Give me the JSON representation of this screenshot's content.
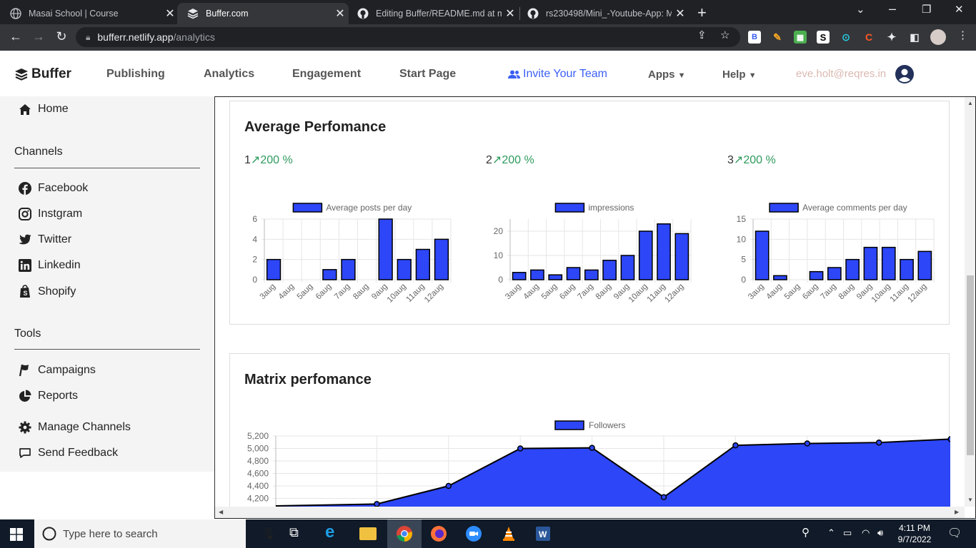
{
  "browser": {
    "tabs": [
      {
        "title": "Masai School | Course",
        "active": false
      },
      {
        "title": "Buffer.com",
        "active": true
      },
      {
        "title": "Editing Buffer/README.md at ma",
        "active": false
      },
      {
        "title": "rs230498/Mini_-Youtube-App: M",
        "active": false
      }
    ],
    "new_tab": "+",
    "url_host": "bufferr.netlify.app",
    "url_path": "/analytics"
  },
  "header": {
    "logo": "Buffer",
    "nav": [
      "Publishing",
      "Analytics",
      "Engagement",
      "Start Page"
    ],
    "invite": "Invite Your Team",
    "apps": "Apps",
    "help": "Help",
    "email": "eve.holt@reqres.in"
  },
  "sidebar": {
    "home": "Home",
    "channels_heading": "Channels",
    "channels": [
      "Facebook",
      "Instgram",
      "Twitter",
      "Linkedin",
      "Shopify"
    ],
    "tools_heading": "Tools",
    "tools": [
      "Campaigns",
      "Reports"
    ],
    "manage": "Manage Channels",
    "feedback": "Send Feedback"
  },
  "avg": {
    "title": "Average Perfomance",
    "stats": [
      {
        "num": "1",
        "pct": "200 %"
      },
      {
        "num": "2",
        "pct": "200 %"
      },
      {
        "num": "3",
        "pct": "200 %"
      }
    ]
  },
  "matrix": {
    "title": "Matrix perfomance"
  },
  "colors": {
    "bar": "#2d46f7",
    "accent": "#3b5ff5",
    "up": "#2e9a5e"
  },
  "chart_data": [
    {
      "type": "bar",
      "legend": "Average posts per day",
      "categories": [
        "3aug",
        "4aug",
        "5aug",
        "6aug",
        "7aug",
        "8aug",
        "9aug",
        "10aug",
        "11aug",
        "12aug"
      ],
      "values": [
        2,
        0,
        0,
        1,
        2,
        0,
        6,
        2,
        3,
        4
      ],
      "ylim": [
        0,
        6
      ],
      "yticks": [
        0,
        2,
        4,
        6
      ]
    },
    {
      "type": "bar",
      "legend": "impressions",
      "categories": [
        "3aug",
        "4aug",
        "5aug",
        "6aug",
        "7aug",
        "8aug",
        "9aug",
        "10aug",
        "11aug",
        "12aug"
      ],
      "values": [
        3,
        4,
        2,
        5,
        4,
        8,
        10,
        20,
        23,
        19
      ],
      "ylim": [
        0,
        25
      ],
      "yticks": [
        0,
        10,
        20
      ]
    },
    {
      "type": "bar",
      "legend": "Average comments per day",
      "categories": [
        "3aug",
        "4aug",
        "5aug",
        "6aug",
        "7aug",
        "8aug",
        "9aug",
        "10aug",
        "11aug",
        "12aug"
      ],
      "values": [
        12,
        1,
        0,
        2,
        3,
        5,
        8,
        8,
        5,
        7
      ],
      "ylim": [
        0,
        15
      ],
      "yticks": [
        0,
        5,
        10,
        15
      ]
    },
    {
      "type": "area",
      "legend": "Followers",
      "values": [
        4080,
        4110,
        4400,
        5000,
        5010,
        4220,
        5050,
        5080,
        5095,
        5150
      ],
      "ylim": [
        4080,
        5200
      ],
      "yticks": [
        "5,200",
        "5,000",
        "4,800",
        "4,600",
        "4,400",
        "4,200"
      ]
    }
  ],
  "taskbar": {
    "search_placeholder": "Type here to search",
    "time": "4:11 PM",
    "date": "9/7/2022"
  }
}
